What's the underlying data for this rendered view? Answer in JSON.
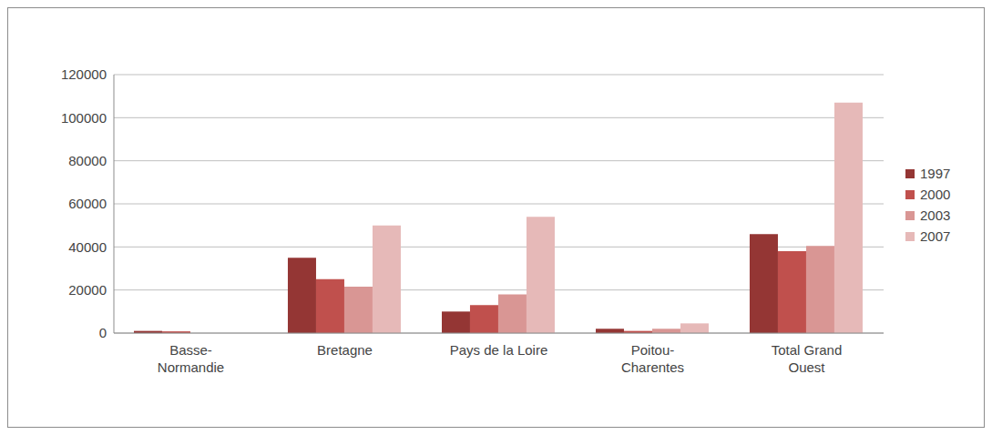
{
  "chart_data": {
    "type": "bar",
    "categories": [
      "Basse-Normandie",
      "Bretagne",
      "Pays de la Loire",
      "Poitou-Charentes",
      "Total Grand Ouest"
    ],
    "series": [
      {
        "name": "1997",
        "color": "#943634",
        "values": [
          1000,
          35000,
          10000,
          2000,
          46000
        ]
      },
      {
        "name": "2000",
        "color": "#c0504d",
        "values": [
          800,
          25000,
          13000,
          1000,
          38000
        ]
      },
      {
        "name": "2003",
        "color": "#d99694",
        "values": [
          0,
          21500,
          18000,
          2000,
          40500
        ]
      },
      {
        "name": "2007",
        "color": "#e6b9b8",
        "values": [
          0,
          50000,
          54000,
          4500,
          107000
        ]
      }
    ],
    "ylim": [
      0,
      120000
    ],
    "yticks": [
      0,
      20000,
      40000,
      60000,
      80000,
      100000,
      120000
    ],
    "grid": true,
    "legend": "right"
  }
}
